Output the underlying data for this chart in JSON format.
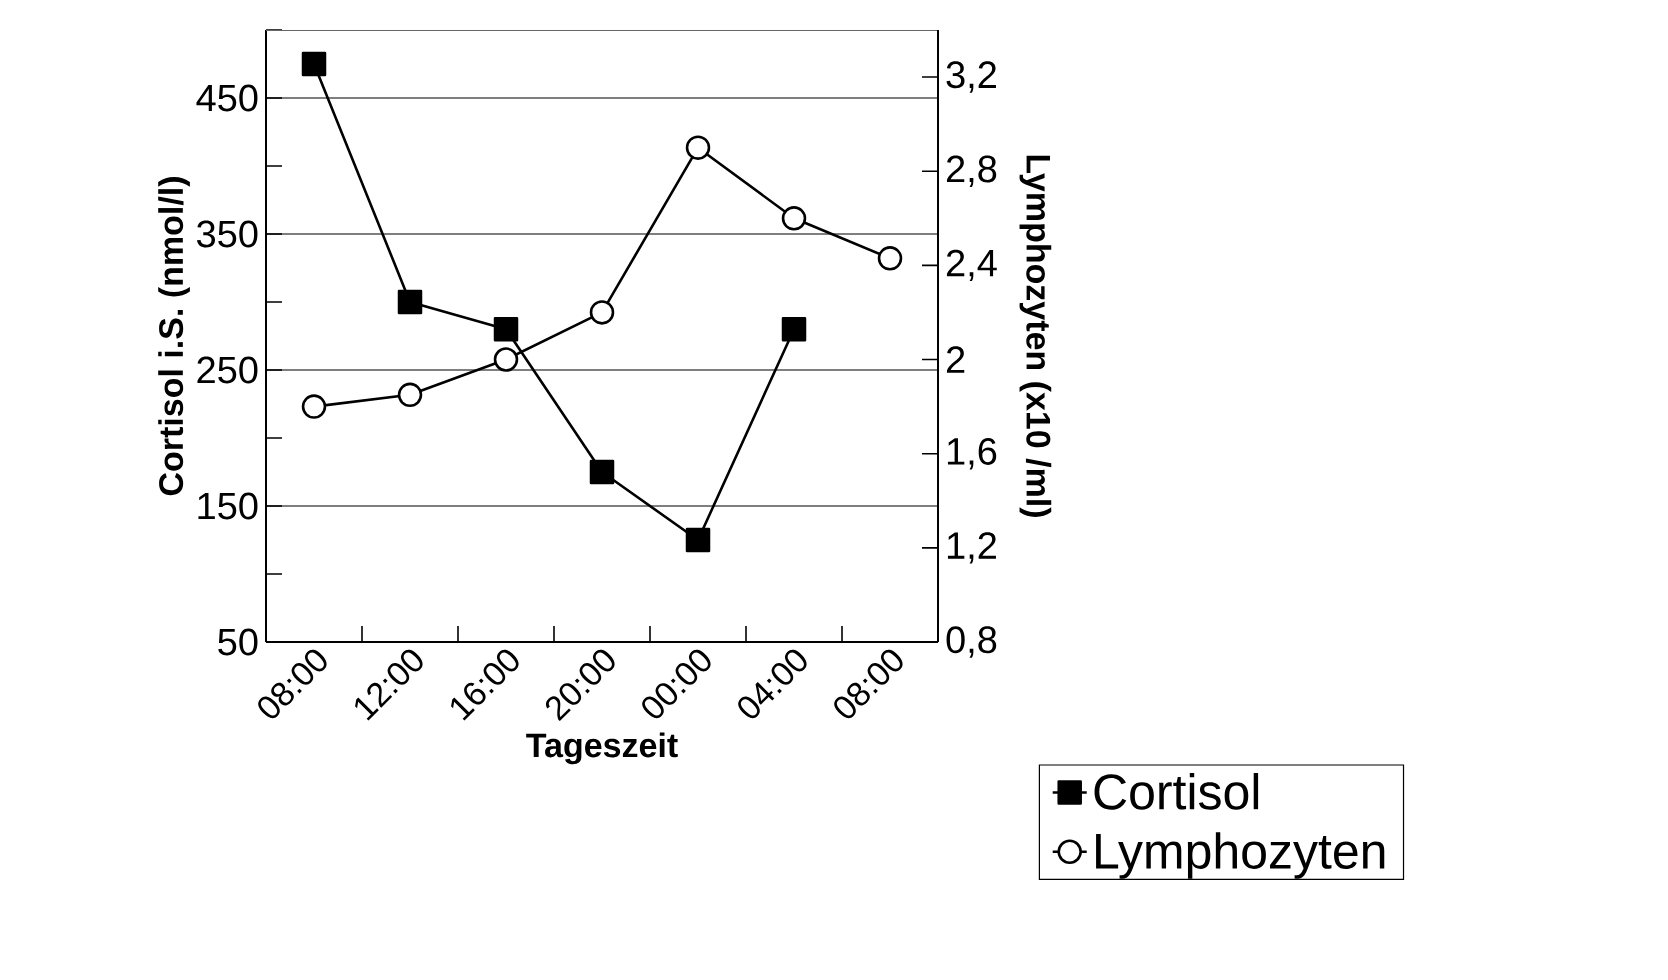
{
  "chart_data": {
    "type": "line",
    "xlabel": "Tageszeit",
    "ylabel": "Cortisol i.S. (nmol/l)",
    "y2label": "Lymphozyten (x10 /ml)",
    "categories": [
      "08:00",
      "12:00",
      "16:00",
      "20:00",
      "00:00",
      "04:00",
      "08:00"
    ],
    "series": [
      {
        "name": "Cortisol",
        "color": "#000000",
        "marker": "square",
        "values": [
          475,
          300,
          280,
          175,
          125,
          280,
          null
        ]
      },
      {
        "name": "Lymphozyten",
        "color": "#000000",
        "marker": "circle",
        "axis": "y2",
        "values": [
          1.8,
          1.85,
          2.0,
          2.2,
          2.9,
          2.6,
          2.43
        ]
      }
    ],
    "ylim": [
      50,
      500
    ],
    "yticks": [
      50,
      {
        "value": 100,
        "label": null
      },
      150,
      {
        "value": 200,
        "label": null
      },
      250,
      {
        "value": 300,
        "label": null
      },
      350,
      {
        "value": 400,
        "label": null
      },
      450,
      {
        "value": 500,
        "label": null
      }
    ],
    "y2lim": [
      0.8,
      3.4
    ],
    "y2ticks": [
      {
        "value": 0.8,
        "label": "0,8"
      },
      {
        "value": 1.2,
        "label": "1,2"
      },
      {
        "value": 1.6,
        "label": "1,6"
      },
      2,
      {
        "value": 2.4,
        "label": "2,4"
      },
      {
        "value": 2.8,
        "label": "2,8"
      },
      {
        "value": 3.2,
        "label": "3,2"
      }
    ],
    "grid": "y",
    "legend": "bottom right",
    "line_style": "solid"
  }
}
